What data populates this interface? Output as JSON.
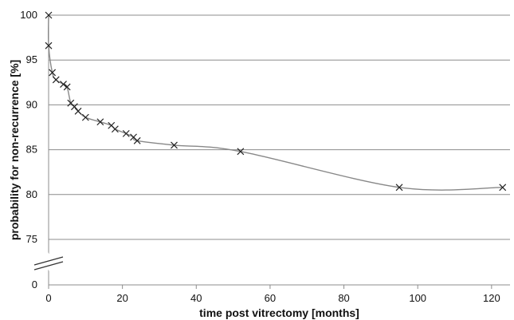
{
  "chart_data": {
    "type": "line",
    "title": "",
    "xlabel": "time post vitrectomy [months]",
    "ylabel": "probability for non-recurrence [%]",
    "xlim": [
      0,
      125
    ],
    "ylim_display": [
      70,
      100
    ],
    "axis_break": true,
    "grid": "horizontal",
    "x_ticks": [
      0,
      20,
      40,
      60,
      80,
      100,
      120
    ],
    "y_ticks": [
      0,
      75,
      80,
      85,
      90,
      95,
      100
    ],
    "series": [
      {
        "x": [
          0,
          0,
          1,
          2,
          4,
          5,
          6,
          7,
          8,
          10,
          14,
          17,
          18,
          21,
          23,
          24,
          34,
          52,
          95,
          123
        ],
        "y": [
          100,
          96.6,
          93.6,
          92.8,
          92.3,
          92.0,
          90.2,
          89.8,
          89.3,
          88.6,
          88.1,
          87.7,
          87.3,
          86.8,
          86.4,
          86.0,
          85.5,
          84.8,
          80.8,
          80.8
        ],
        "color": "#888888",
        "marker": "x"
      }
    ],
    "colors": {
      "grid": "#8c8c8c",
      "line": "#888888",
      "marker": "#222222"
    }
  }
}
